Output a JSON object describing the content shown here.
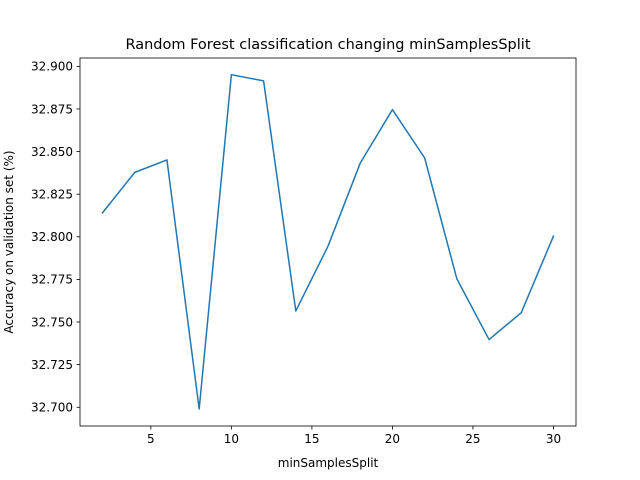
{
  "chart_data": {
    "type": "line",
    "title": "Random Forest classification changing minSamplesSplit",
    "xlabel": "minSamplesSplit",
    "ylabel": "Accuracy on validation set (%)",
    "xlim": [
      0.6,
      31.4
    ],
    "ylim": [
      32.689,
      32.9049
    ],
    "xticks": [
      5,
      10,
      15,
      20,
      25,
      30
    ],
    "yticks": [
      32.7,
      32.725,
      32.75,
      32.775,
      32.8,
      32.825,
      32.85,
      32.875,
      32.9
    ],
    "xtick_labels": [
      "5",
      "10",
      "15",
      "20",
      "25",
      "30"
    ],
    "ytick_labels": [
      "32.700",
      "32.725",
      "32.750",
      "32.775",
      "32.800",
      "32.825",
      "32.850",
      "32.875",
      "32.900"
    ],
    "grid": false,
    "series": [
      {
        "color": "#1f77b4",
        "x": [
          2,
          4,
          6,
          8,
          10,
          12,
          14,
          16,
          18,
          20,
          22,
          24,
          26,
          28,
          30
        ],
        "y": [
          32.8141,
          32.8378,
          32.8451,
          32.699,
          32.8951,
          32.8915,
          32.7565,
          32.7945,
          32.8432,
          32.8746,
          32.8463,
          32.7754,
          32.7397,
          32.7555,
          32.8004
        ]
      }
    ]
  }
}
